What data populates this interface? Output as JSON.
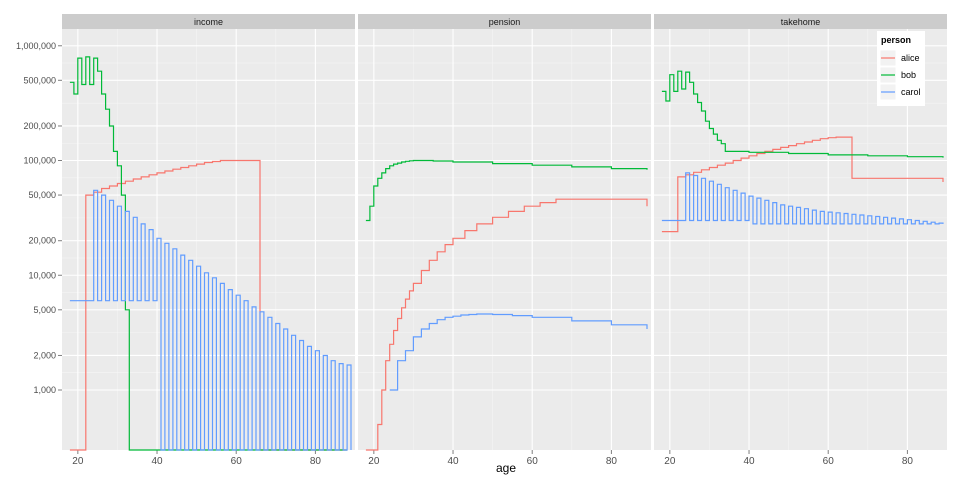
{
  "chart_data": {
    "type": "line",
    "xlabel": "age",
    "ylabel": "",
    "x_ticks": [
      20,
      40,
      60,
      80
    ],
    "xlim": [
      16,
      90
    ],
    "y_scale": "log",
    "ylim": [
      300,
      1400000
    ],
    "y_ticks": [
      1000,
      2000,
      5000,
      10000,
      20000,
      50000,
      100000,
      200000,
      500000,
      1000000
    ],
    "y_tick_labels": [
      "1,000",
      "2,000",
      "5,000",
      "10,000",
      "20,000",
      "50,000",
      "100,000",
      "200,000",
      "500,000",
      "1,000,000"
    ],
    "grid": true,
    "step": true,
    "legend": {
      "title": "person",
      "position": "top-right"
    },
    "colors": {
      "alice": "#f8766d",
      "bob": "#00ba38",
      "carol": "#619cff"
    },
    "panels": [
      {
        "name": "income",
        "series": [
          {
            "name": "alice",
            "x": [
              18,
              21,
              22,
              24,
              26,
              28,
              30,
              32,
              34,
              36,
              38,
              40,
              42,
              44,
              46,
              48,
              50,
              52,
              54,
              56,
              58,
              66,
              67,
              88
            ],
            "y": [
              300,
              300,
              50000,
              53000,
              57000,
              60000,
              63000,
              66000,
              69000,
              72000,
              75000,
              78000,
              81000,
              84000,
              87000,
              90000,
              93000,
              96000,
              98000,
              100000,
              100000,
              300,
              300,
              300
            ]
          },
          {
            "name": "bob",
            "x": [
              18,
              19,
              20,
              21,
              22,
              23,
              24,
              25,
              26,
              27,
              28,
              29,
              30,
              31,
              32,
              33,
              34,
              35,
              88
            ],
            "y": [
              480000,
              380000,
              780000,
              460000,
              800000,
              460000,
              780000,
              600000,
              380000,
              280000,
              200000,
              120000,
              90000,
              50000,
              5000,
              300,
              300,
              300,
              300
            ]
          },
          {
            "name": "carol",
            "x": [
              18,
              23,
              24,
              25,
              26,
              27,
              28,
              29,
              30,
              31,
              32,
              33,
              34,
              35,
              36,
              37,
              38,
              39,
              40,
              41,
              42,
              43,
              44,
              45,
              46,
              47,
              48,
              49,
              50,
              51,
              52,
              53,
              54,
              55,
              56,
              57,
              58,
              59,
              60,
              61,
              62,
              63,
              64,
              65,
              66,
              67,
              68,
              69,
              70,
              71,
              72,
              73,
              74,
              75,
              76,
              77,
              78,
              79,
              80,
              81,
              82,
              83,
              84,
              85,
              86,
              87,
              88,
              89
            ],
            "y": [
              6000,
              6000,
              55000,
              6000,
              50000,
              6000,
              45000,
              6000,
              40000,
              6000,
              36000,
              6000,
              32000,
              6000,
              28000,
              6000,
              25000,
              6000,
              21000,
              300,
              19000,
              300,
              17000,
              300,
              15000,
              300,
              13500,
              300,
              12000,
              300,
              10500,
              300,
              9500,
              300,
              8500,
              300,
              7500,
              300,
              6700,
              300,
              6000,
              300,
              5300,
              300,
              4800,
              300,
              4300,
              300,
              3800,
              300,
              3400,
              300,
              3000,
              300,
              2700,
              300,
              2400,
              300,
              2200,
              300,
              2000,
              300,
              1800,
              300,
              1700,
              300,
              1650,
              300
            ]
          }
        ]
      },
      {
        "name": "pension",
        "series": [
          {
            "name": "alice",
            "x": [
              18,
              20,
              21,
              22,
              23,
              24,
              25,
              26,
              27,
              28,
              29,
              30,
              32,
              34,
              36,
              38,
              40,
              43,
              46,
              50,
              54,
              58,
              62,
              66,
              89
            ],
            "y": [
              300,
              300,
              500,
              1000,
              1800,
              2500,
              3300,
              4200,
              5200,
              6200,
              7300,
              8500,
              11000,
              13500,
              16000,
              18500,
              21000,
              24500,
              28000,
              32000,
              36000,
              40000,
              43000,
              46000,
              40000
            ]
          },
          {
            "name": "bob",
            "x": [
              18,
              19,
              20,
              21,
              22,
              23,
              24,
              25,
              26,
              27,
              28,
              29,
              30,
              32,
              35,
              40,
              50,
              60,
              70,
              80,
              89
            ],
            "y": [
              30000,
              40000,
              60000,
              70000,
              78000,
              85000,
              90000,
              93000,
              95000,
              97000,
              98500,
              99500,
              100000,
              100000,
              99000,
              97000,
              94000,
              91000,
              88000,
              85000,
              83000
            ]
          },
          {
            "name": "carol",
            "x": [
              24,
              26,
              28,
              30,
              32,
              34,
              36,
              38,
              40,
              42,
              44,
              46,
              48,
              50,
              55,
              60,
              70,
              80,
              89
            ],
            "y": [
              1000,
              1800,
              2200,
              2900,
              3400,
              3800,
              4100,
              4300,
              4400,
              4500,
              4550,
              4600,
              4600,
              4550,
              4450,
              4300,
              4000,
              3700,
              3400
            ]
          }
        ]
      },
      {
        "name": "takehome",
        "series": [
          {
            "name": "alice",
            "x": [
              18,
              22,
              24,
              26,
              28,
              30,
              32,
              34,
              36,
              38,
              40,
              42,
              44,
              46,
              48,
              50,
              52,
              54,
              56,
              58,
              60,
              62,
              64,
              66,
              89
            ],
            "y": [
              24000,
              72000,
              75000,
              79000,
              83000,
              87000,
              91000,
              95000,
              100000,
              105000,
              110000,
              115000,
              120000,
              125000,
              130000,
              135000,
              140000,
              145000,
              150000,
              155000,
              158000,
              160000,
              160000,
              70000,
              65000
            ]
          },
          {
            "name": "bob",
            "x": [
              18,
              19,
              20,
              21,
              22,
              23,
              24,
              25,
              26,
              27,
              28,
              29,
              30,
              31,
              32,
              33,
              34,
              40,
              50,
              60,
              70,
              80,
              89
            ],
            "y": [
              400000,
              330000,
              560000,
              400000,
              600000,
              420000,
              590000,
              480000,
              380000,
              320000,
              270000,
              220000,
              190000,
              170000,
              150000,
              140000,
              120000,
              118000,
              115000,
              112000,
              110000,
              108000,
              106000
            ]
          },
          {
            "name": "carol",
            "x": [
              18,
              23,
              24,
              25,
              26,
              27,
              28,
              29,
              30,
              31,
              32,
              33,
              34,
              35,
              36,
              37,
              38,
              39,
              40,
              41,
              42,
              43,
              44,
              45,
              46,
              47,
              48,
              49,
              50,
              51,
              52,
              53,
              54,
              55,
              56,
              57,
              58,
              59,
              60,
              61,
              62,
              63,
              64,
              65,
              66,
              67,
              68,
              69,
              70,
              71,
              72,
              73,
              74,
              75,
              76,
              77,
              78,
              79,
              80,
              81,
              82,
              83,
              84,
              85,
              86,
              87,
              88,
              89
            ],
            "y": [
              30000,
              30000,
              78000,
              30000,
              74000,
              30000,
              70000,
              30000,
              66000,
              30000,
              62000,
              30000,
              58000,
              30000,
              55000,
              30000,
              52000,
              30000,
              49000,
              28000,
              47000,
              28000,
              45000,
              28000,
              43000,
              28000,
              41000,
              28000,
              40000,
              28000,
              39000,
              28000,
              38000,
              28000,
              37000,
              28000,
              36000,
              28000,
              35500,
              28000,
              35000,
              28000,
              34500,
              28000,
              34000,
              28000,
              33500,
              28000,
              33000,
              28000,
              32500,
              28000,
              32000,
              28000,
              31500,
              28000,
              31000,
              28000,
              30500,
              28000,
              30000,
              28000,
              29500,
              28000,
              29000,
              28000,
              28500,
              28000
            ]
          }
        ]
      }
    ]
  }
}
